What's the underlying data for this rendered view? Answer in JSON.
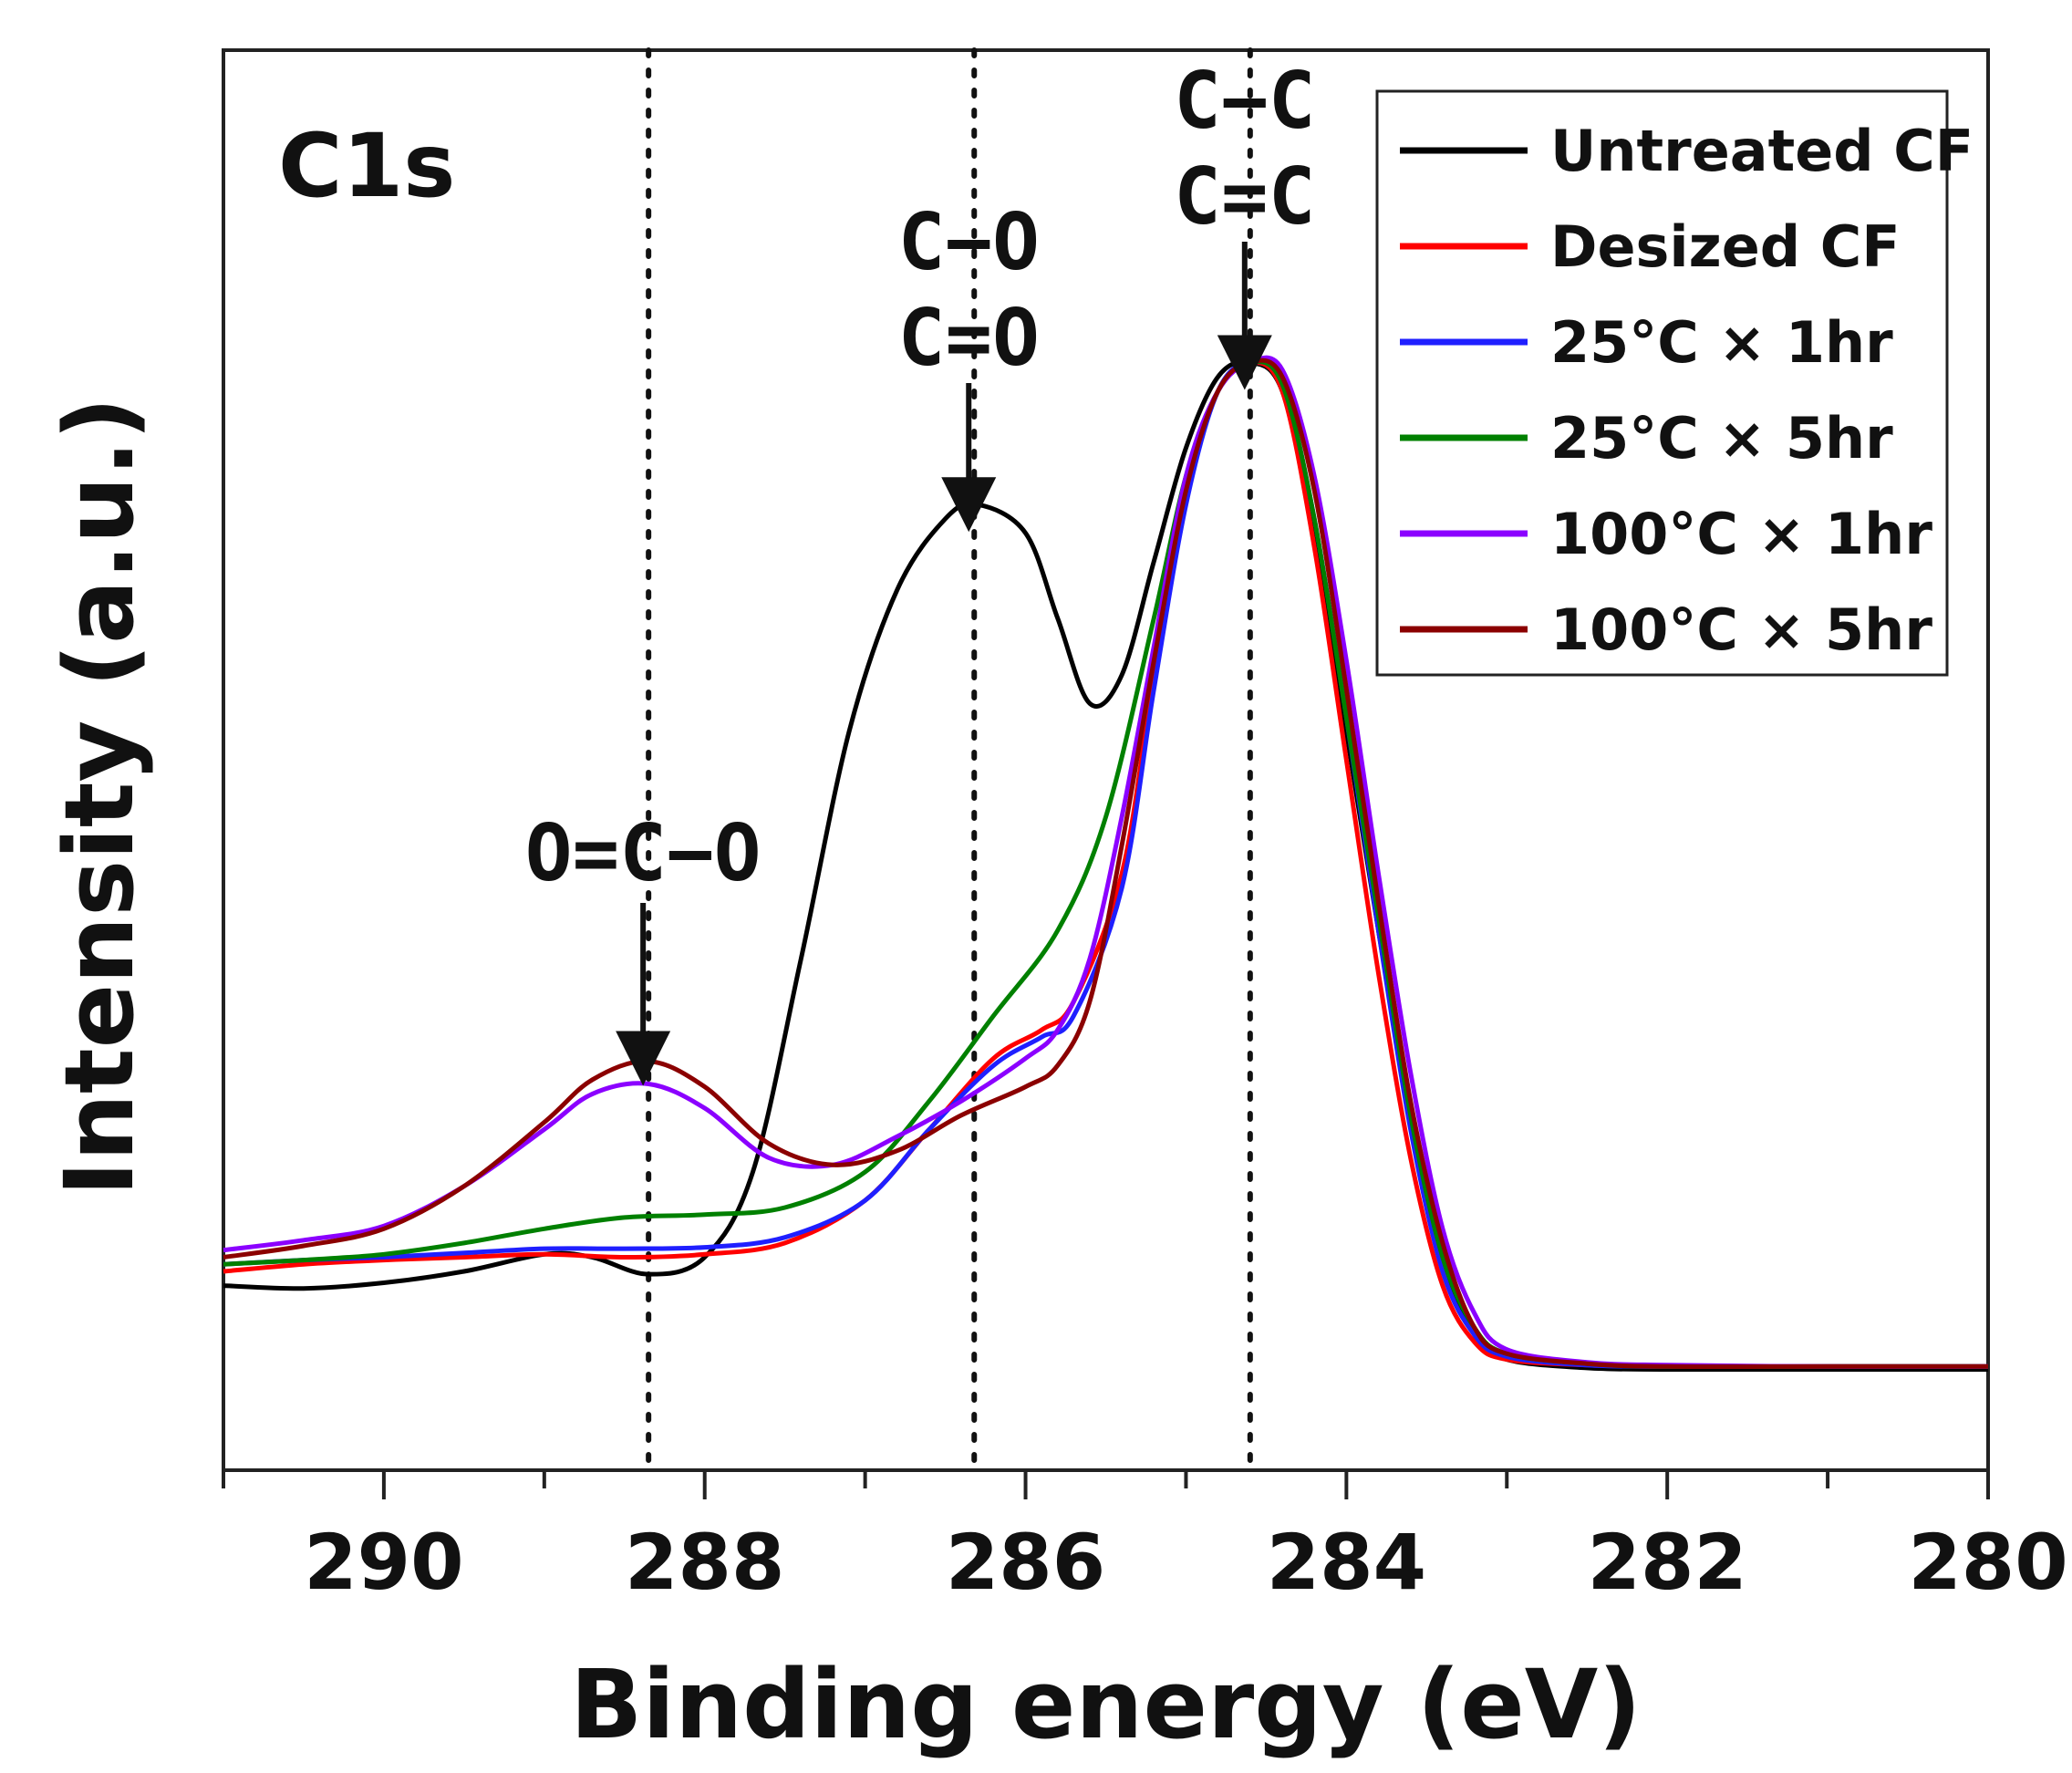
{
  "chart_data": {
    "type": "line",
    "panel_label": "C1s",
    "xlabel": "Binding energy (eV)",
    "ylabel": "Intensity (a.u.)",
    "xlim": [
      291,
      280
    ],
    "ylim": [
      0,
      1
    ],
    "x_ticks": [
      290,
      288,
      286,
      284,
      282,
      280
    ],
    "x_tick_labels": [
      "290",
      "288",
      "286",
      "284",
      "282",
      "280"
    ],
    "reference_lines": [
      288.35,
      286.32,
      284.6
    ],
    "annotations": [
      {
        "lines": [
          "O=C−O"
        ],
        "x": 288.35,
        "arrow_tip_y": 0.29
      },
      {
        "lines": [
          "C−O",
          "C=O"
        ],
        "x": 286.32,
        "arrow_tip_y": 0.68
      },
      {
        "lines": [
          "C−C",
          "C=C"
        ],
        "x": 284.6,
        "arrow_tip_y": 0.78
      }
    ],
    "legend_position": "top-right",
    "series": [
      {
        "name": "Untreated CF",
        "color": "#000000",
        "x": [
          291,
          290.5,
          290,
          289.5,
          289,
          288.7,
          288.35,
          288,
          287.7,
          287.4,
          287.1,
          286.8,
          286.5,
          286.3,
          286.0,
          285.8,
          285.6,
          285.4,
          285.2,
          285.0,
          284.8,
          284.6,
          284.4,
          284.2,
          284.0,
          283.8,
          283.6,
          283.4,
          283.2,
          283.0,
          282.5,
          282.0,
          281,
          280
        ],
        "y": [
          0.13,
          0.128,
          0.132,
          0.14,
          0.152,
          0.15,
          0.138,
          0.15,
          0.21,
          0.36,
          0.52,
          0.62,
          0.67,
          0.68,
          0.66,
          0.6,
          0.54,
          0.56,
          0.64,
          0.72,
          0.77,
          0.78,
          0.76,
          0.66,
          0.52,
          0.38,
          0.25,
          0.15,
          0.095,
          0.078,
          0.072,
          0.071,
          0.071,
          0.071
        ]
      },
      {
        "name": "Desized CF",
        "color": "#ff0000",
        "x": [
          291,
          290.5,
          290,
          289.5,
          289,
          288.5,
          288,
          287.5,
          287,
          286.6,
          286.2,
          285.9,
          285.7,
          285.4,
          285.2,
          285.0,
          284.8,
          284.6,
          284.4,
          284.2,
          284.0,
          283.8,
          283.6,
          283.4,
          283.2,
          283.0,
          282.5,
          282.0,
          281,
          280
        ],
        "y": [
          0.14,
          0.145,
          0.148,
          0.15,
          0.152,
          0.15,
          0.152,
          0.16,
          0.19,
          0.24,
          0.29,
          0.31,
          0.33,
          0.42,
          0.56,
          0.69,
          0.76,
          0.78,
          0.76,
          0.65,
          0.5,
          0.35,
          0.22,
          0.13,
          0.09,
          0.078,
          0.074,
          0.073,
          0.073,
          0.073
        ]
      },
      {
        "name": "25°C × 1hr",
        "color": "#1f1fff",
        "x": [
          291,
          290.5,
          290,
          289.5,
          289,
          288.5,
          288,
          287.5,
          287,
          286.6,
          286.2,
          285.9,
          285.7,
          285.4,
          285.2,
          285.0,
          284.8,
          284.6,
          284.4,
          284.2,
          284.0,
          283.8,
          283.6,
          283.4,
          283.2,
          283.0,
          282.5,
          282.0,
          281,
          280
        ],
        "y": [
          0.145,
          0.148,
          0.15,
          0.153,
          0.156,
          0.156,
          0.157,
          0.164,
          0.19,
          0.24,
          0.285,
          0.305,
          0.32,
          0.41,
          0.55,
          0.68,
          0.76,
          0.78,
          0.765,
          0.67,
          0.53,
          0.38,
          0.24,
          0.14,
          0.095,
          0.08,
          0.074,
          0.073,
          0.073,
          0.073
        ]
      },
      {
        "name": "25°C × 5hr",
        "color": "#008000",
        "x": [
          291,
          290.5,
          290,
          289.5,
          289,
          288.5,
          288,
          287.5,
          287,
          286.6,
          286.2,
          285.8,
          285.5,
          285.2,
          285.0,
          284.8,
          284.6,
          284.4,
          284.2,
          284.0,
          283.8,
          283.6,
          283.4,
          283.2,
          283.0,
          282.5,
          282.0,
          281,
          280
        ],
        "y": [
          0.145,
          0.148,
          0.152,
          0.16,
          0.17,
          0.178,
          0.18,
          0.185,
          0.21,
          0.26,
          0.32,
          0.38,
          0.46,
          0.6,
          0.7,
          0.76,
          0.78,
          0.765,
          0.67,
          0.53,
          0.39,
          0.25,
          0.15,
          0.1,
          0.082,
          0.075,
          0.073,
          0.073,
          0.073
        ]
      },
      {
        "name": "100°C × 1hr",
        "color": "#8b00ff",
        "x": [
          291,
          290.5,
          290,
          289.5,
          289,
          288.7,
          288.35,
          288,
          287.6,
          287.2,
          286.8,
          286.4,
          286.0,
          285.8,
          285.6,
          285.4,
          285.2,
          285.0,
          284.8,
          284.6,
          284.4,
          284.2,
          284.0,
          283.8,
          283.6,
          283.4,
          283.2,
          283.0,
          282.5,
          282.0,
          281,
          280
        ],
        "y": [
          0.155,
          0.162,
          0.172,
          0.2,
          0.24,
          0.265,
          0.272,
          0.255,
          0.22,
          0.215,
          0.235,
          0.26,
          0.29,
          0.31,
          0.36,
          0.46,
          0.58,
          0.7,
          0.76,
          0.78,
          0.775,
          0.7,
          0.57,
          0.42,
          0.28,
          0.17,
          0.11,
          0.085,
          0.076,
          0.074,
          0.073,
          0.073
        ]
      },
      {
        "name": "100°C × 5hr",
        "color": "#8b0000",
        "x": [
          291,
          290.5,
          290,
          289.5,
          289,
          288.7,
          288.35,
          288,
          287.6,
          287.2,
          286.8,
          286.4,
          286.0,
          285.8,
          285.6,
          285.4,
          285.2,
          285.0,
          284.8,
          284.6,
          284.4,
          284.2,
          284.0,
          283.8,
          283.6,
          283.4,
          283.2,
          283.0,
          282.5,
          282.0,
          281,
          280
        ],
        "y": [
          0.15,
          0.158,
          0.17,
          0.2,
          0.245,
          0.275,
          0.288,
          0.27,
          0.23,
          0.215,
          0.225,
          0.25,
          0.27,
          0.285,
          0.33,
          0.44,
          0.57,
          0.69,
          0.76,
          0.78,
          0.77,
          0.69,
          0.55,
          0.4,
          0.26,
          0.16,
          0.1,
          0.082,
          0.075,
          0.073,
          0.073,
          0.073
        ]
      }
    ]
  }
}
